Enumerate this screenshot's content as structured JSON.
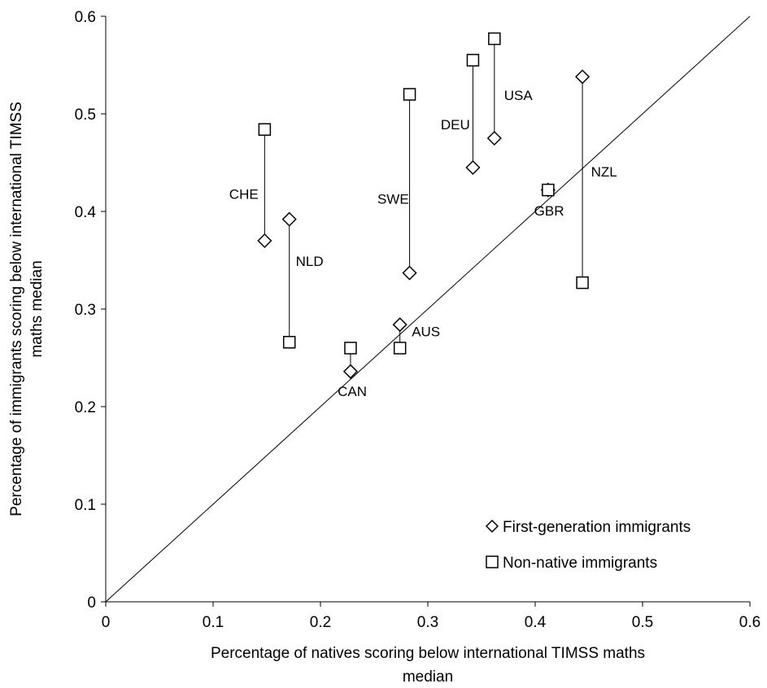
{
  "chart_data": {
    "type": "scatter",
    "title": "",
    "xlabel": [
      "Percentage of natives scoring below international TIMSS maths",
      "median"
    ],
    "ylabel": [
      "Percentage of immigrants scoring below international TIMSS",
      "maths median"
    ],
    "xlim": [
      0,
      0.6
    ],
    "ylim": [
      0,
      0.6
    ],
    "x_ticks": [
      "0",
      "0.1",
      "0.2",
      "0.3",
      "0.4",
      "0.5",
      "0.6"
    ],
    "y_ticks": [
      "0",
      "0.1",
      "0.2",
      "0.3",
      "0.4",
      "0.5",
      "0.6"
    ],
    "grid": false,
    "reference_line": [
      [
        0,
        0
      ],
      [
        0.6,
        0.6
      ]
    ],
    "legend_position": "bottom-right",
    "series": [
      {
        "name": "First-generation immigrants",
        "marker": "diamond",
        "points": [
          {
            "country": "CHE",
            "x": 0.148,
            "y": 0.37
          },
          {
            "country": "NLD",
            "x": 0.171,
            "y": 0.392
          },
          {
            "country": "CAN",
            "x": 0.228,
            "y": 0.236
          },
          {
            "country": "AUS",
            "x": 0.274,
            "y": 0.284
          },
          {
            "country": "SWE",
            "x": 0.283,
            "y": 0.337
          },
          {
            "country": "DEU",
            "x": 0.342,
            "y": 0.445
          },
          {
            "country": "USA",
            "x": 0.362,
            "y": 0.475
          },
          {
            "country": "GBR",
            "x": 0.412,
            "y": 0.422
          },
          {
            "country": "NZL",
            "x": 0.444,
            "y": 0.538
          }
        ]
      },
      {
        "name": "Non-native immigrants",
        "marker": "square",
        "points": [
          {
            "country": "CHE",
            "x": 0.148,
            "y": 0.484
          },
          {
            "country": "NLD",
            "x": 0.171,
            "y": 0.266
          },
          {
            "country": "CAN",
            "x": 0.228,
            "y": 0.26
          },
          {
            "country": "AUS",
            "x": 0.274,
            "y": 0.26
          },
          {
            "country": "SWE",
            "x": 0.283,
            "y": 0.52
          },
          {
            "country": "DEU",
            "x": 0.342,
            "y": 0.555
          },
          {
            "country": "USA",
            "x": 0.362,
            "y": 0.577
          },
          {
            "country": "GBR",
            "x": 0.412,
            "y": 0.422
          },
          {
            "country": "NZL",
            "x": 0.444,
            "y": 0.327
          }
        ]
      }
    ],
    "country_labels": [
      {
        "text": "CHE",
        "x": 0.115,
        "y": 0.413
      },
      {
        "text": "NLD",
        "x": 0.177,
        "y": 0.344
      },
      {
        "text": "CAN",
        "x": 0.216,
        "y": 0.211
      },
      {
        "text": "AUS",
        "x": 0.285,
        "y": 0.272
      },
      {
        "text": "SWE",
        "x": 0.253,
        "y": 0.408
      },
      {
        "text": "DEU",
        "x": 0.312,
        "y": 0.484
      },
      {
        "text": "USA",
        "x": 0.371,
        "y": 0.514
      },
      {
        "text": "GBR",
        "x": 0.399,
        "y": 0.396
      },
      {
        "text": "NZL",
        "x": 0.452,
        "y": 0.436
      }
    ]
  }
}
